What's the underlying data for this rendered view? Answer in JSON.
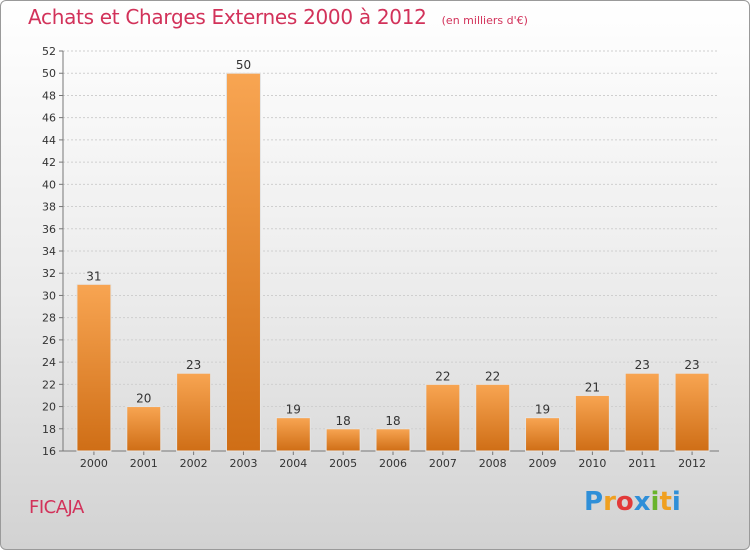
{
  "title": "Achats et Charges Externes 2000 à 2012",
  "unit": "(en milliers d'€)",
  "commune": "FICAJA",
  "logo": {
    "letters": [
      "P",
      "r",
      "o",
      "x",
      "i",
      "t",
      "i"
    ],
    "colors": [
      "#2f8fd8",
      "#f0a020",
      "#e23a3a",
      "#2f8fd8",
      "#6ab42c",
      "#f0a020",
      "#2f8fd8"
    ]
  },
  "colors": {
    "title": "#d2325a",
    "bar_light": "#f8a552",
    "bar_dark": "#cf6e16"
  },
  "chart_data": {
    "type": "bar",
    "categories": [
      "2000",
      "2001",
      "2002",
      "2003",
      "2004",
      "2005",
      "2006",
      "2007",
      "2008",
      "2009",
      "2010",
      "2011",
      "2012"
    ],
    "values": [
      31,
      20,
      23,
      50,
      19,
      18,
      18,
      22,
      22,
      19,
      21,
      23,
      23
    ],
    "ylim": [
      16,
      52
    ],
    "yticks": [
      16,
      18,
      20,
      22,
      24,
      26,
      28,
      30,
      32,
      34,
      36,
      38,
      40,
      42,
      44,
      46,
      48,
      50,
      52
    ],
    "grid": true,
    "data_labels": true
  }
}
